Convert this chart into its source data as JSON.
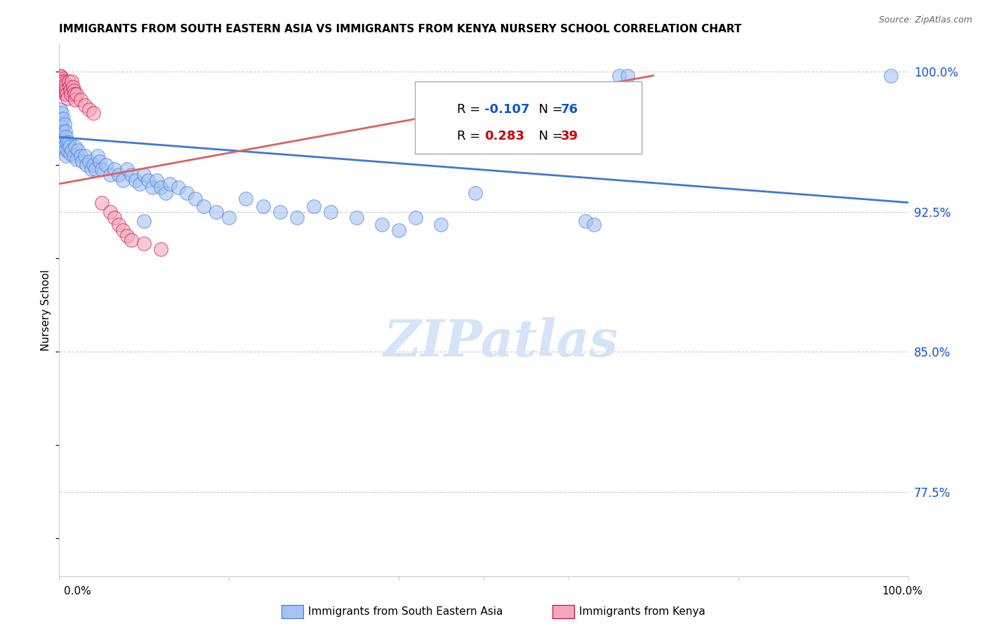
{
  "title": "IMMIGRANTS FROM SOUTH EASTERN ASIA VS IMMIGRANTS FROM KENYA NURSERY SCHOOL CORRELATION CHART",
  "source": "Source: ZipAtlas.com",
  "ylabel": "Nursery School",
  "yticks_labels": [
    "100.0%",
    "92.5%",
    "85.0%",
    "77.5%"
  ],
  "ytick_values": [
    1.0,
    0.925,
    0.85,
    0.775
  ],
  "legend_label1": "Immigrants from South Eastern Asia",
  "legend_label2": "Immigrants from Kenya",
  "R1": -0.107,
  "N1": 76,
  "R2": 0.283,
  "N2": 39,
  "color_blue": "#a4c2f4",
  "color_pink": "#f4a7b9",
  "edge_blue": "#3c78d8",
  "edge_pink": "#c9003e",
  "line_blue": "#3c78d8",
  "line_pink": "#e06060",
  "rtext_blue": "#1155cc",
  "rtext_pink": "#cc0000",
  "watermark": "ZIPatlas",
  "blue_points": [
    [
      0.001,
      0.98
    ],
    [
      0.002,
      0.975
    ],
    [
      0.002,
      0.972
    ],
    [
      0.003,
      0.978
    ],
    [
      0.003,
      0.97
    ],
    [
      0.004,
      0.968
    ],
    [
      0.004,
      0.965
    ],
    [
      0.005,
      0.975
    ],
    [
      0.005,
      0.963
    ],
    [
      0.006,
      0.972
    ],
    [
      0.006,
      0.96
    ],
    [
      0.007,
      0.968
    ],
    [
      0.007,
      0.958
    ],
    [
      0.008,
      0.965
    ],
    [
      0.008,
      0.955
    ],
    [
      0.009,
      0.962
    ],
    [
      0.01,
      0.958
    ],
    [
      0.011,
      0.962
    ],
    [
      0.012,
      0.96
    ],
    [
      0.013,
      0.956
    ],
    [
      0.015,
      0.958
    ],
    [
      0.017,
      0.955
    ],
    [
      0.019,
      0.96
    ],
    [
      0.02,
      0.953
    ],
    [
      0.022,
      0.958
    ],
    [
      0.025,
      0.955
    ],
    [
      0.027,
      0.952
    ],
    [
      0.03,
      0.955
    ],
    [
      0.032,
      0.95
    ],
    [
      0.035,
      0.952
    ],
    [
      0.038,
      0.948
    ],
    [
      0.04,
      0.95
    ],
    [
      0.043,
      0.948
    ],
    [
      0.045,
      0.955
    ],
    [
      0.048,
      0.952
    ],
    [
      0.05,
      0.948
    ],
    [
      0.055,
      0.95
    ],
    [
      0.06,
      0.945
    ],
    [
      0.065,
      0.948
    ],
    [
      0.07,
      0.945
    ],
    [
      0.075,
      0.942
    ],
    [
      0.08,
      0.948
    ],
    [
      0.085,
      0.945
    ],
    [
      0.09,
      0.942
    ],
    [
      0.095,
      0.94
    ],
    [
      0.1,
      0.945
    ],
    [
      0.105,
      0.942
    ],
    [
      0.11,
      0.938
    ],
    [
      0.115,
      0.942
    ],
    [
      0.12,
      0.938
    ],
    [
      0.125,
      0.935
    ],
    [
      0.13,
      0.94
    ],
    [
      0.14,
      0.938
    ],
    [
      0.15,
      0.935
    ],
    [
      0.16,
      0.932
    ],
    [
      0.17,
      0.928
    ],
    [
      0.185,
      0.925
    ],
    [
      0.2,
      0.922
    ],
    [
      0.22,
      0.932
    ],
    [
      0.24,
      0.928
    ],
    [
      0.26,
      0.925
    ],
    [
      0.28,
      0.922
    ],
    [
      0.3,
      0.928
    ],
    [
      0.32,
      0.925
    ],
    [
      0.35,
      0.922
    ],
    [
      0.38,
      0.918
    ],
    [
      0.4,
      0.915
    ],
    [
      0.42,
      0.922
    ],
    [
      0.45,
      0.918
    ],
    [
      0.49,
      0.935
    ],
    [
      0.62,
      0.92
    ],
    [
      0.63,
      0.918
    ],
    [
      0.66,
      0.998
    ],
    [
      0.67,
      0.998
    ],
    [
      0.98,
      0.998
    ],
    [
      0.1,
      0.92
    ]
  ],
  "pink_points": [
    [
      0.001,
      0.998
    ],
    [
      0.002,
      0.997
    ],
    [
      0.002,
      0.995
    ],
    [
      0.003,
      0.996
    ],
    [
      0.003,
      0.993
    ],
    [
      0.004,
      0.995
    ],
    [
      0.004,
      0.992
    ],
    [
      0.005,
      0.994
    ],
    [
      0.005,
      0.99
    ],
    [
      0.006,
      0.993
    ],
    [
      0.006,
      0.99
    ],
    [
      0.007,
      0.992
    ],
    [
      0.007,
      0.988
    ],
    [
      0.008,
      0.99
    ],
    [
      0.009,
      0.988
    ],
    [
      0.01,
      0.986
    ],
    [
      0.011,
      0.995
    ],
    [
      0.012,
      0.992
    ],
    [
      0.013,
      0.99
    ],
    [
      0.014,
      0.988
    ],
    [
      0.015,
      0.995
    ],
    [
      0.016,
      0.992
    ],
    [
      0.017,
      0.99
    ],
    [
      0.018,
      0.988
    ],
    [
      0.019,
      0.985
    ],
    [
      0.02,
      0.988
    ],
    [
      0.025,
      0.985
    ],
    [
      0.03,
      0.982
    ],
    [
      0.035,
      0.98
    ],
    [
      0.04,
      0.978
    ],
    [
      0.05,
      0.93
    ],
    [
      0.06,
      0.925
    ],
    [
      0.065,
      0.922
    ],
    [
      0.07,
      0.918
    ],
    [
      0.075,
      0.915
    ],
    [
      0.08,
      0.912
    ],
    [
      0.085,
      0.91
    ],
    [
      0.1,
      0.908
    ],
    [
      0.12,
      0.905
    ]
  ],
  "xlim": [
    0.0,
    1.0
  ],
  "ylim": [
    0.73,
    1.015
  ],
  "blue_trend_x": [
    0.0,
    1.0
  ],
  "blue_trend_y": [
    0.965,
    0.93
  ],
  "pink_trend_x": [
    0.0,
    0.7
  ],
  "pink_trend_y": [
    0.94,
    0.998
  ]
}
